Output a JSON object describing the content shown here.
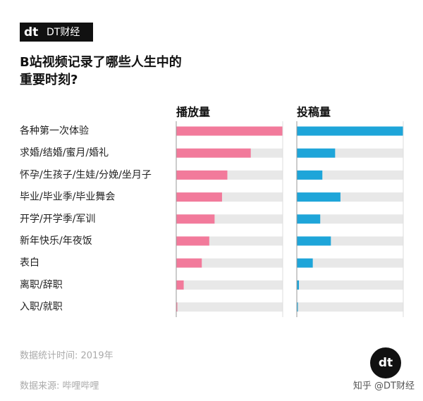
{
  "brand": {
    "mark": "dt",
    "name": "DT财经"
  },
  "chart_data": {
    "type": "bar",
    "orientation": "horizontal",
    "title": [
      "B站视频记录了哪些人生中的",
      "重要时刻?"
    ],
    "categories": [
      "各种第一次体验",
      "求婚/结婚/蜜月/婚礼",
      "怀孕/生孩子/生娃/分娩/坐月子",
      "毕业/毕业季/毕业舞会",
      "开学/开学季/军训",
      "新年快乐/年夜饭",
      "表白",
      "离职/辞职",
      "入职/就职"
    ],
    "series": [
      {
        "name": "播放量",
        "color": "#f27a9b",
        "values": [
          100,
          70,
          48,
          43,
          36,
          31,
          24,
          7,
          1
        ]
      },
      {
        "name": "投稿量",
        "color": "#1ea5d9",
        "values": [
          100,
          36,
          24,
          41,
          22,
          32,
          15,
          2,
          1
        ]
      }
    ],
    "xlim": [
      0,
      100
    ],
    "track_color": "#e8e8e8"
  },
  "notes": [
    "数据统计时间: 2019年",
    "数据来源: 哔哩哔哩"
  ],
  "watermark": "知乎 @DT财经"
}
